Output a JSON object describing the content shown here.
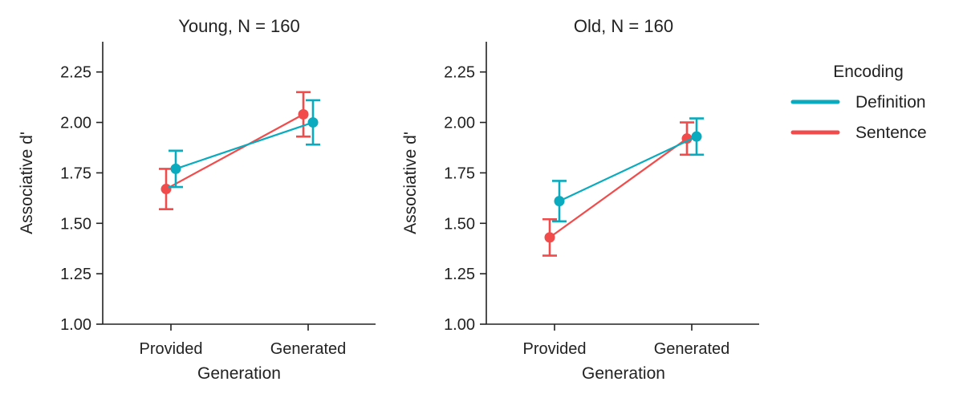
{
  "chart_data": [
    {
      "type": "line",
      "title": "Young, N = 160",
      "xlabel": "Generation",
      "ylabel": "Associative d'",
      "categories": [
        "Provided",
        "Generated"
      ],
      "ylim": [
        1.0,
        2.4
      ],
      "yticks": [
        "1.00",
        "1.25",
        "1.50",
        "1.75",
        "2.00",
        "2.25"
      ],
      "series": [
        {
          "name": "Definition",
          "values": [
            1.77,
            2.0
          ],
          "err_low": [
            1.68,
            1.89
          ],
          "err_high": [
            1.86,
            2.11
          ]
        },
        {
          "name": "Sentence",
          "values": [
            1.67,
            2.04
          ],
          "err_low": [
            1.57,
            1.93
          ],
          "err_high": [
            1.77,
            2.15
          ]
        }
      ]
    },
    {
      "type": "line",
      "title": "Old, N = 160",
      "xlabel": "Generation",
      "ylabel": "Associative d'",
      "categories": [
        "Provided",
        "Generated"
      ],
      "ylim": [
        1.0,
        2.4
      ],
      "yticks": [
        "1.00",
        "1.25",
        "1.50",
        "1.75",
        "2.00",
        "2.25"
      ],
      "series": [
        {
          "name": "Definition",
          "values": [
            1.61,
            1.93
          ],
          "err_low": [
            1.51,
            1.84
          ],
          "err_high": [
            1.71,
            2.02
          ]
        },
        {
          "name": "Sentence",
          "values": [
            1.43,
            1.92
          ],
          "err_low": [
            1.34,
            1.84
          ],
          "err_high": [
            1.52,
            2.0
          ]
        }
      ]
    }
  ],
  "legend": {
    "title": "Encoding",
    "position": "right",
    "entries": [
      {
        "name": "Definition",
        "color": "#0aabbe"
      },
      {
        "name": "Sentence",
        "color": "#f24b4b"
      }
    ]
  }
}
